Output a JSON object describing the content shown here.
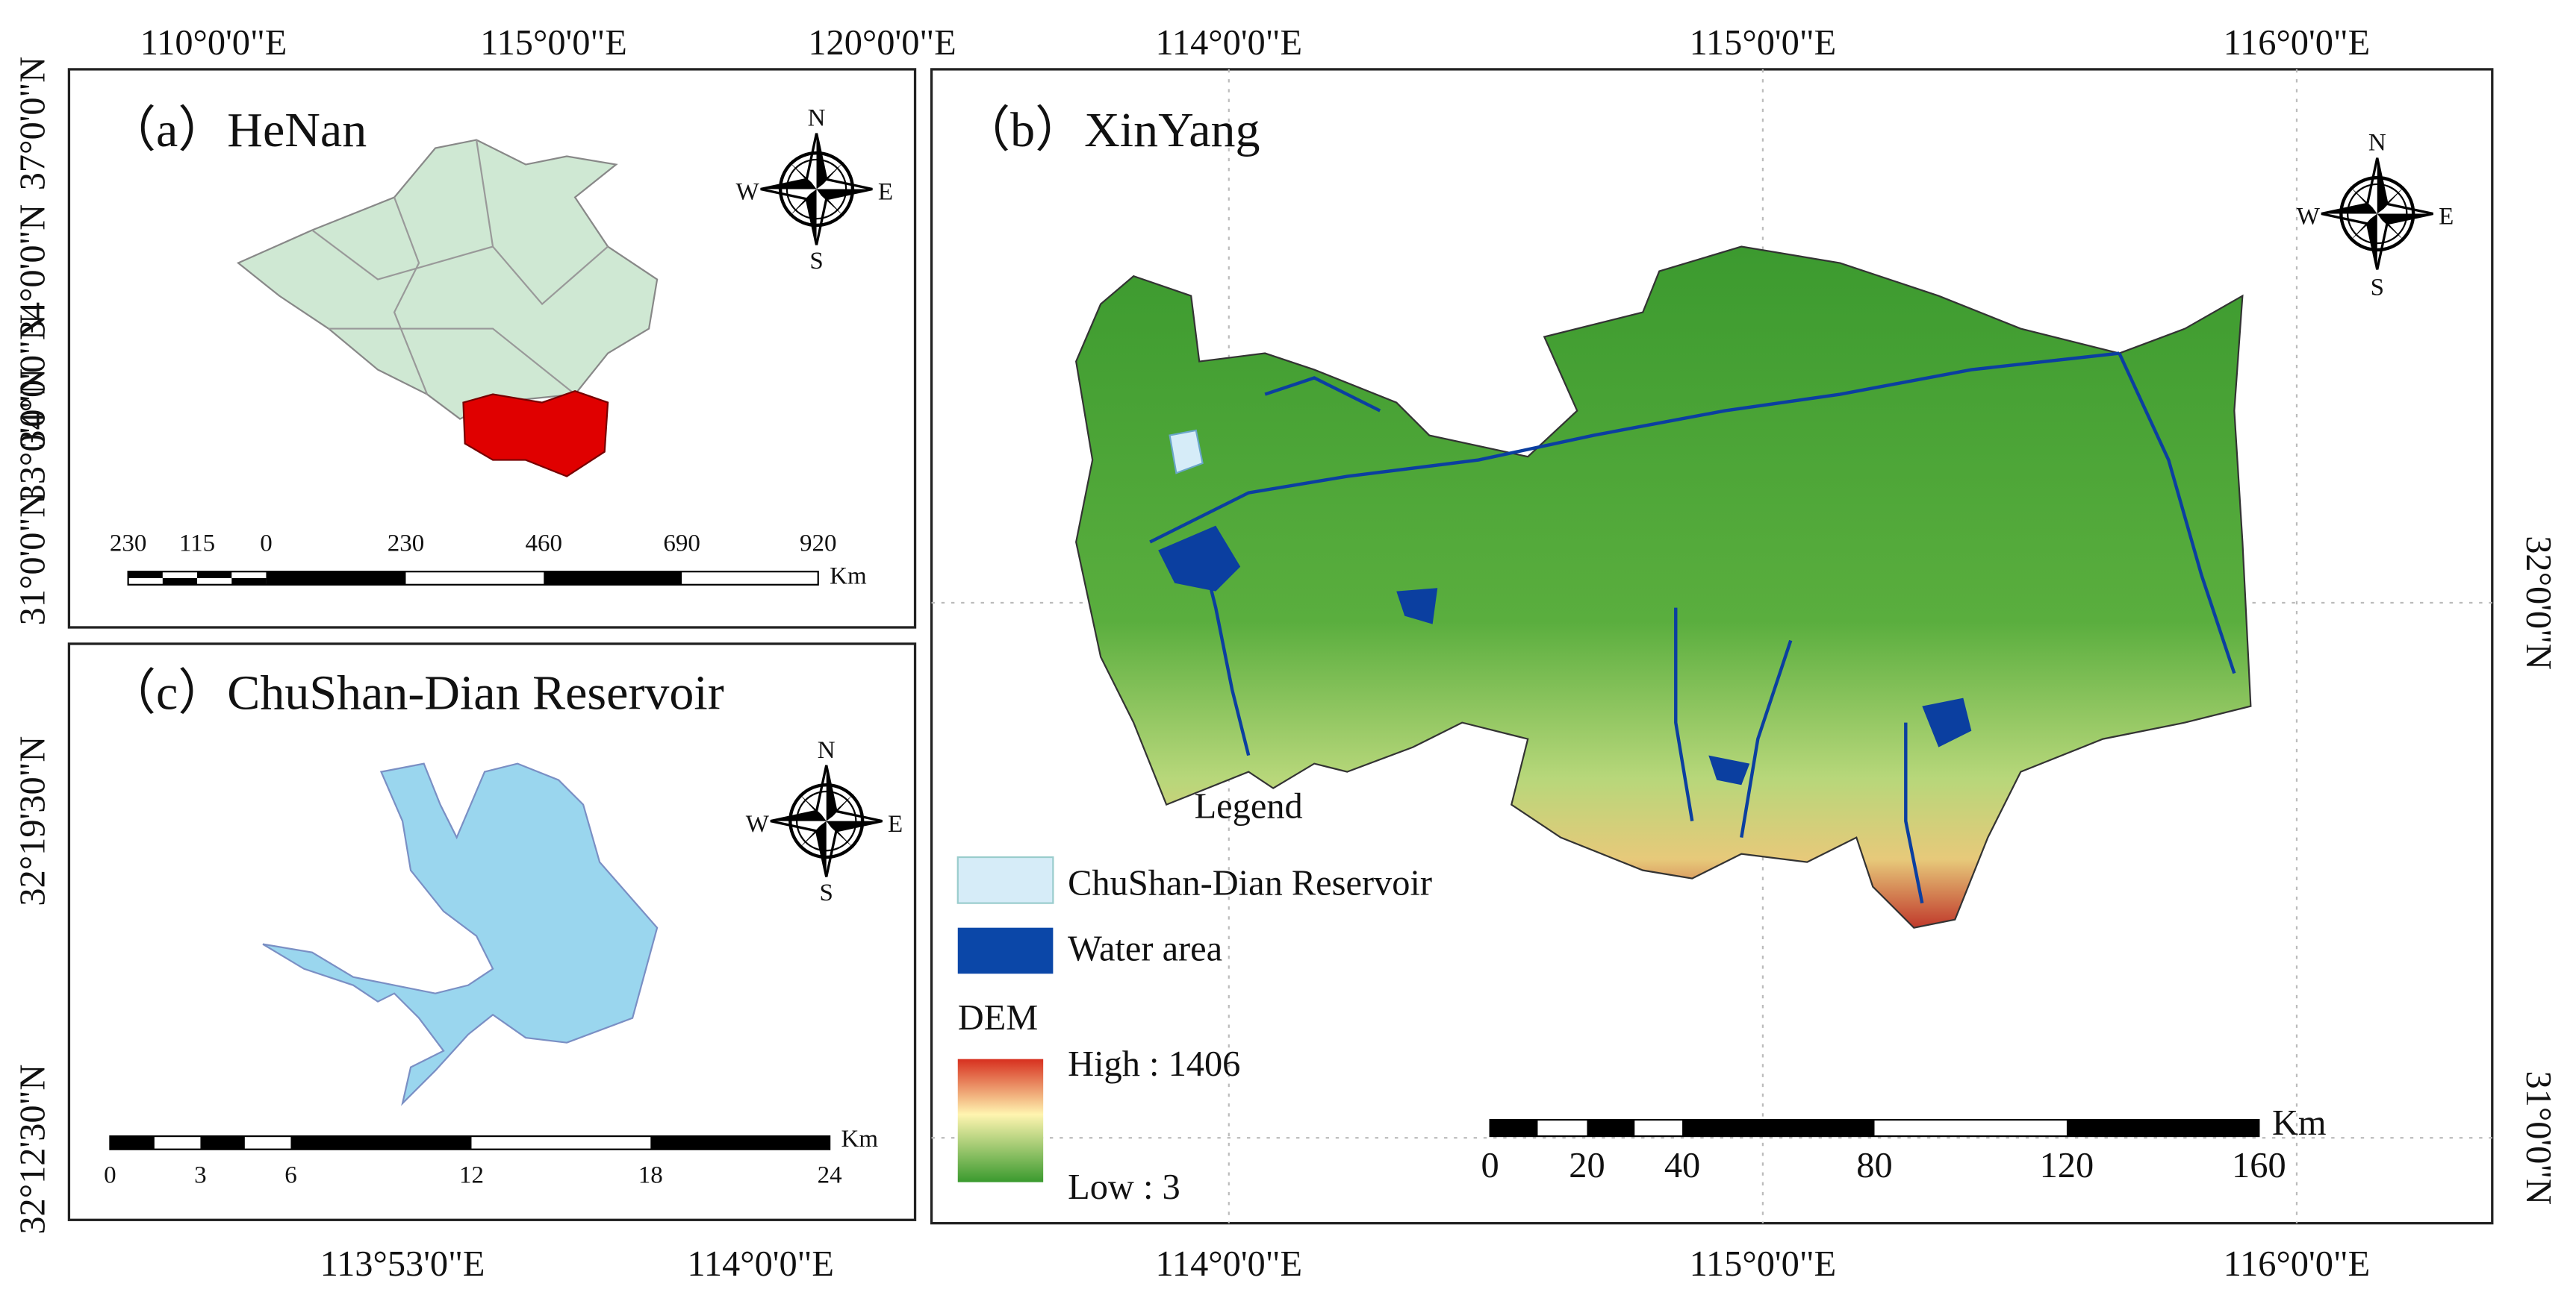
{
  "panel_a": {
    "title": "（a）HeNan",
    "top_labels": [
      "110°0'0\"E",
      "115°0'0\"E",
      "120°0'0\"E"
    ],
    "left_labels": [
      "37°0'0\"N",
      "34°0'0\"N",
      "34°0'0\"N",
      "33°0'0\"N",
      "31°0'0\"N"
    ],
    "scale_labels": [
      "230",
      "115",
      "0",
      "230",
      "460",
      "690",
      "920"
    ],
    "scale_unit": "Km"
  },
  "panel_b": {
    "title": "（b）XinYang",
    "top_labels": [
      "114°0'0\"E",
      "115°0'0\"E",
      "116°0'0\"E"
    ],
    "bottom_labels": [
      "114°0'0\"E",
      "115°0'0\"E",
      "116°0'0\"E"
    ],
    "right_labels": [
      "32°0'0\"N",
      "31°0'0\"N"
    ],
    "scale_labels": [
      "0",
      "20",
      "40",
      "80",
      "120",
      "160"
    ],
    "scale_unit": "Km"
  },
  "panel_c": {
    "title": "（c）ChuShan-Dian Reservoir",
    "bottom_labels": [
      "113°53'0\"E",
      "114°0'0\"E"
    ],
    "left_labels": [
      "32°19'30\"N",
      "32°12'30\"N"
    ],
    "scale_labels": [
      "0",
      "3",
      "6",
      "12",
      "18",
      "24"
    ],
    "scale_unit": "Km"
  },
  "compass": {
    "n": "N",
    "s": "S",
    "w": "W",
    "e": "E"
  },
  "legend": {
    "title": "Legend",
    "reservoir": "ChuShan-Dian Reservoir",
    "water": "Water area",
    "dem": "DEM",
    "high": "High : 1406",
    "low": "Low : 3"
  }
}
